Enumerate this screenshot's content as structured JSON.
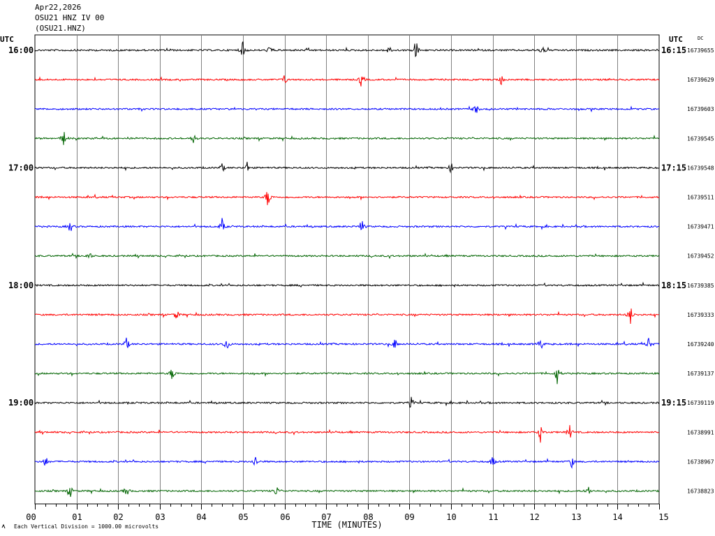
{
  "header": {
    "date": "Apr22,2026",
    "station": "OSU21 HNZ IV 00",
    "channel": "(OSU21.HNZ)"
  },
  "chart_data": {
    "type": "line",
    "title": "",
    "xlabel": "TIME (MINUTES)",
    "ylabel": "",
    "left_axis_label": "UTC",
    "right_axis_label": "UTC",
    "dc_label": "DC",
    "scale_note": "Each Vertical Division = 1000.00 microvolts",
    "x_ticks": [
      "00",
      "01",
      "02",
      "03",
      "04",
      "05",
      "06",
      "07",
      "08",
      "09",
      "10",
      "11",
      "12",
      "13",
      "14",
      "15"
    ],
    "xlim": [
      0,
      15
    ],
    "grid": true,
    "trace_colors": [
      "#000000",
      "#ff0000",
      "#0000ff",
      "#006400"
    ],
    "left_time_labels": [
      {
        "row": 0,
        "label": "16:00"
      },
      {
        "row": 4,
        "label": "17:00"
      },
      {
        "row": 8,
        "label": "18:00"
      },
      {
        "row": 12,
        "label": "19:00"
      }
    ],
    "right_time_labels": [
      {
        "row": 0,
        "label": "16:15"
      },
      {
        "row": 4,
        "label": "17:15"
      },
      {
        "row": 8,
        "label": "18:15"
      },
      {
        "row": 12,
        "label": "19:15"
      }
    ],
    "dc_values": [
      "16739655",
      "16739629",
      "16739603",
      "16739545",
      "16739548",
      "16739511",
      "16739471",
      "16739452",
      "16739385",
      "16739333",
      "16739240",
      "16739137",
      "16739119",
      "16738991",
      "16738967",
      "16738823"
    ],
    "events": [
      {
        "row": 0,
        "minute": 5.0,
        "amp": 0.55
      },
      {
        "row": 0,
        "minute": 5.65,
        "amp": 0.35
      },
      {
        "row": 0,
        "minute": 8.5,
        "amp": 0.3
      },
      {
        "row": 0,
        "minute": 9.15,
        "amp": 0.8
      },
      {
        "row": 0,
        "minute": 12.2,
        "amp": 0.4
      },
      {
        "row": 1,
        "minute": 6.0,
        "amp": 0.3
      },
      {
        "row": 1,
        "minute": 7.85,
        "amp": 0.55
      },
      {
        "row": 1,
        "minute": 11.2,
        "amp": 0.3
      },
      {
        "row": 2,
        "minute": 10.6,
        "amp": 0.35
      },
      {
        "row": 3,
        "minute": 0.7,
        "amp": 0.45
      },
      {
        "row": 3,
        "minute": 3.8,
        "amp": 0.35
      },
      {
        "row": 4,
        "minute": 4.5,
        "amp": 0.3
      },
      {
        "row": 4,
        "minute": 5.1,
        "amp": 0.3
      },
      {
        "row": 4,
        "minute": 10.0,
        "amp": 0.3
      },
      {
        "row": 5,
        "minute": 5.6,
        "amp": 0.7
      },
      {
        "row": 6,
        "minute": 0.85,
        "amp": 0.4
      },
      {
        "row": 6,
        "minute": 4.5,
        "amp": 0.45
      },
      {
        "row": 6,
        "minute": 7.85,
        "amp": 0.45
      },
      {
        "row": 7,
        "minute": 1.3,
        "amp": 0.3
      },
      {
        "row": 9,
        "minute": 3.4,
        "amp": 0.35
      },
      {
        "row": 9,
        "minute": 14.3,
        "amp": 0.7
      },
      {
        "row": 10,
        "minute": 2.2,
        "amp": 0.45
      },
      {
        "row": 10,
        "minute": 4.6,
        "amp": 0.45
      },
      {
        "row": 10,
        "minute": 8.65,
        "amp": 0.35
      },
      {
        "row": 10,
        "minute": 12.15,
        "amp": 0.45
      },
      {
        "row": 10,
        "minute": 14.75,
        "amp": 0.4
      },
      {
        "row": 11,
        "minute": 3.3,
        "amp": 0.45
      },
      {
        "row": 11,
        "minute": 12.55,
        "amp": 0.6
      },
      {
        "row": 12,
        "minute": 9.05,
        "amp": 0.35
      },
      {
        "row": 13,
        "minute": 12.15,
        "amp": 0.55
      },
      {
        "row": 13,
        "minute": 12.85,
        "amp": 0.45
      },
      {
        "row": 14,
        "minute": 0.25,
        "amp": 0.4
      },
      {
        "row": 14,
        "minute": 5.3,
        "amp": 0.4
      },
      {
        "row": 14,
        "minute": 11.0,
        "amp": 0.35
      },
      {
        "row": 14,
        "minute": 12.9,
        "amp": 0.35
      },
      {
        "row": 15,
        "minute": 0.85,
        "amp": 0.35
      },
      {
        "row": 15,
        "minute": 2.2,
        "amp": 0.35
      },
      {
        "row": 15,
        "minute": 5.8,
        "amp": 0.35
      },
      {
        "row": 15,
        "minute": 13.3,
        "amp": 0.3
      }
    ]
  }
}
